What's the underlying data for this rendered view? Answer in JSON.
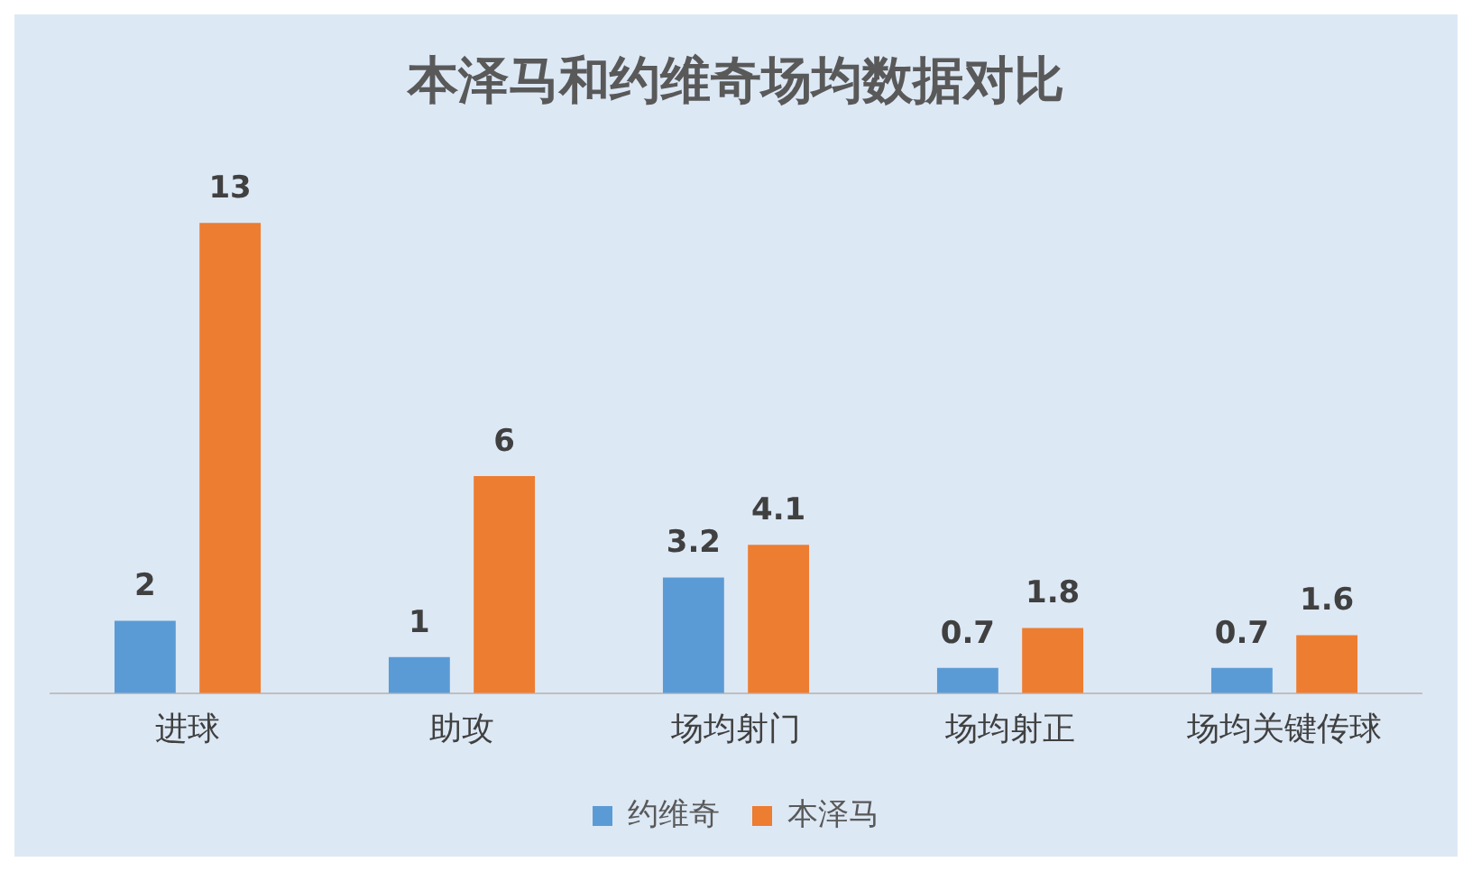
{
  "chart_data": {
    "type": "bar",
    "title": "本泽马和约维奇场均数据对比",
    "categories": [
      "进球",
      "助攻",
      "场均射门",
      "场均射正",
      "场均关键传球"
    ],
    "series": [
      {
        "name": "约维奇",
        "color": "#5b9bd5",
        "values": [
          2,
          1,
          3.2,
          0.7,
          0.7
        ]
      },
      {
        "name": "本泽马",
        "color": "#ed7d31",
        "values": [
          13,
          6,
          4.1,
          1.8,
          1.6
        ]
      }
    ],
    "data_labels": true,
    "legend": "bottom",
    "grid": false
  }
}
